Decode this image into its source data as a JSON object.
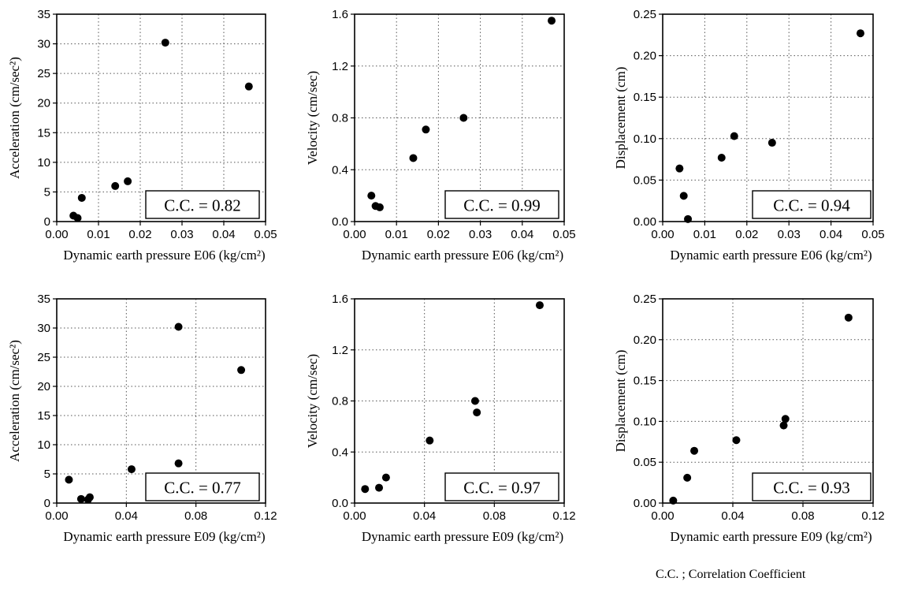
{
  "footnote": "C.C. ; Correlation Coefficient",
  "chart_data": [
    {
      "type": "scatter",
      "xlabel": "Dynamic earth pressure E06 (kg/cm²)",
      "ylabel": "Acceleration (cm/sec²)",
      "xlim": [
        0,
        0.05
      ],
      "ylim": [
        0,
        35
      ],
      "xticks": [
        "0.00",
        "0.01",
        "0.02",
        "0.03",
        "0.04",
        "0.05"
      ],
      "yticks": [
        "0",
        "5",
        "10",
        "15",
        "20",
        "25",
        "30",
        "35"
      ],
      "x": [
        0.004,
        0.005,
        0.006,
        0.014,
        0.017,
        0.026,
        0.046
      ],
      "y": [
        1.0,
        0.6,
        4.0,
        6.0,
        6.8,
        30.2,
        22.8
      ],
      "annotation": "C.C. = 0.82"
    },
    {
      "type": "scatter",
      "xlabel": "Dynamic earth pressure E06 (kg/cm²)",
      "ylabel": "Velocity (cm/sec)",
      "xlim": [
        0,
        0.05
      ],
      "ylim": [
        0,
        1.6
      ],
      "xticks": [
        "0.00",
        "0.01",
        "0.02",
        "0.03",
        "0.04",
        "0.05"
      ],
      "yticks": [
        "0.0",
        "0.4",
        "0.8",
        "1.2",
        "1.6"
      ],
      "x": [
        0.004,
        0.005,
        0.006,
        0.014,
        0.017,
        0.026,
        0.047
      ],
      "y": [
        0.2,
        0.12,
        0.11,
        0.49,
        0.71,
        0.8,
        1.55
      ],
      "annotation": "C.C. = 0.99"
    },
    {
      "type": "scatter",
      "xlabel": "Dynamic earth pressure E06 (kg/cm²)",
      "ylabel": "Displacement (cm)",
      "xlim": [
        0,
        0.05
      ],
      "ylim": [
        0,
        0.25
      ],
      "xticks": [
        "0.00",
        "0.01",
        "0.02",
        "0.03",
        "0.04",
        "0.05"
      ],
      "yticks": [
        "0.00",
        "0.05",
        "0.10",
        "0.15",
        "0.20",
        "0.25"
      ],
      "x": [
        0.004,
        0.005,
        0.006,
        0.014,
        0.017,
        0.026,
        0.047
      ],
      "y": [
        0.064,
        0.031,
        0.003,
        0.077,
        0.103,
        0.095,
        0.227
      ],
      "annotation": "C.C. = 0.94"
    },
    {
      "type": "scatter",
      "xlabel": "Dynamic earth pressure E09 (kg/cm²)",
      "ylabel": "Acceleration (cm/sec²)",
      "xlim": [
        0,
        0.12
      ],
      "ylim": [
        0,
        35
      ],
      "xticks": [
        "0.00",
        "0.04",
        "0.08",
        "0.12"
      ],
      "yticks": [
        "0",
        "5",
        "10",
        "15",
        "20",
        "25",
        "30",
        "35"
      ],
      "x": [
        0.007,
        0.014,
        0.018,
        0.019,
        0.043,
        0.07,
        0.07,
        0.106
      ],
      "y": [
        4.0,
        0.7,
        0.6,
        1.0,
        5.8,
        30.2,
        6.8,
        22.8
      ],
      "annotation": "C.C. = 0.77"
    },
    {
      "type": "scatter",
      "xlabel": "Dynamic earth pressure E09 (kg/cm²)",
      "ylabel": "Velocity (cm/sec)",
      "xlim": [
        0,
        0.12
      ],
      "ylim": [
        0,
        1.6
      ],
      "xticks": [
        "0.00",
        "0.04",
        "0.08",
        "0.12"
      ],
      "yticks": [
        "0.0",
        "0.4",
        "0.8",
        "1.2",
        "1.6"
      ],
      "x": [
        0.006,
        0.014,
        0.018,
        0.043,
        0.069,
        0.07,
        0.106
      ],
      "y": [
        0.11,
        0.12,
        0.2,
        0.49,
        0.8,
        0.71,
        1.55
      ],
      "annotation": "C.C. = 0.97"
    },
    {
      "type": "scatter",
      "xlabel": "Dynamic earth pressure E09 (kg/cm²)",
      "ylabel": "Displacement (cm)",
      "xlim": [
        0,
        0.12
      ],
      "ylim": [
        0,
        0.25
      ],
      "xticks": [
        "0.00",
        "0.04",
        "0.08",
        "0.12"
      ],
      "yticks": [
        "0.00",
        "0.05",
        "0.10",
        "0.15",
        "0.20",
        "0.25"
      ],
      "x": [
        0.006,
        0.014,
        0.018,
        0.042,
        0.069,
        0.07,
        0.106
      ],
      "y": [
        0.003,
        0.031,
        0.064,
        0.077,
        0.095,
        0.103,
        0.227
      ],
      "annotation": "C.C. = 0.93"
    }
  ]
}
